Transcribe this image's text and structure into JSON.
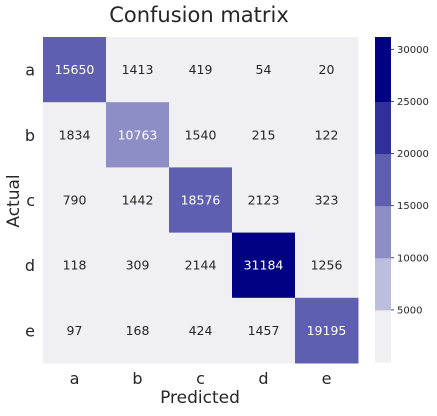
{
  "chart_data": {
    "type": "heatmap",
    "title": "Confusion matrix",
    "xlabel": "Predicted",
    "ylabel": "Actual",
    "x_categories": [
      "a",
      "b",
      "c",
      "d",
      "e"
    ],
    "y_categories": [
      "a",
      "b",
      "c",
      "d",
      "e"
    ],
    "values": [
      [
        15650,
        1413,
        419,
        54,
        20
      ],
      [
        1834,
        10763,
        1540,
        215,
        122
      ],
      [
        790,
        1442,
        18576,
        2123,
        323
      ],
      [
        118,
        309,
        2144,
        31184,
        1256
      ],
      [
        97,
        168,
        424,
        1457,
        19195
      ]
    ],
    "colorbar": {
      "min": 0,
      "max": 31184,
      "ticks": [
        5000,
        10000,
        15000,
        20000,
        25000,
        30000
      ],
      "bins": [
        {
          "from": 0,
          "to": 5000,
          "color": "#efeff4"
        },
        {
          "from": 5000,
          "to": 10000,
          "color": "#bdbddd"
        },
        {
          "from": 10000,
          "to": 15000,
          "color": "#8e8ec7"
        },
        {
          "from": 15000,
          "to": 20000,
          "color": "#5f5fb1"
        },
        {
          "from": 20000,
          "to": 25000,
          "color": "#30309b"
        },
        {
          "from": 25000,
          "to": 31184,
          "color": "#010184"
        }
      ]
    },
    "text_colors": {
      "light": "#ffffff",
      "dark": "#262626"
    },
    "light_text_threshold": 10000,
    "grid": false
  }
}
